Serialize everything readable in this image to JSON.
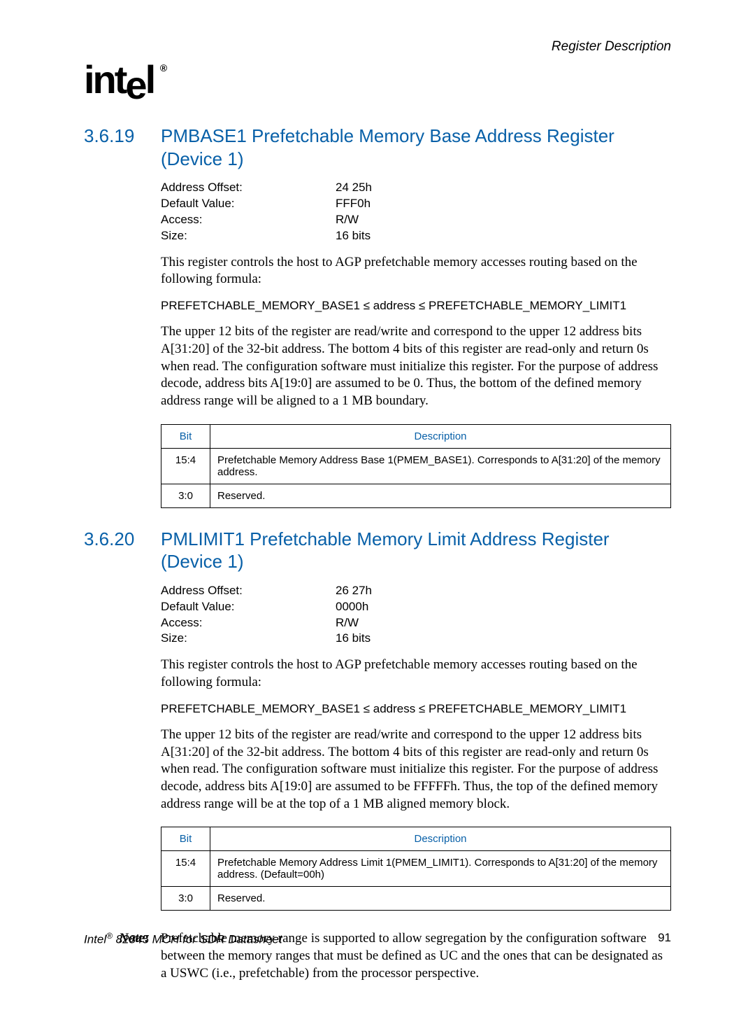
{
  "header": {
    "right": "Register Description",
    "logo": "intel"
  },
  "colors": {
    "accent": "#0860a8",
    "text": "#000000",
    "background": "#ffffff",
    "border": "#000000"
  },
  "sections": [
    {
      "num": "3.6.19",
      "title": "PMBASE1 Prefetchable Memory Base Address Register (Device 1)",
      "info": {
        "address_offset_label": "Address Offset:",
        "address_offset_value": "24 25h",
        "default_value_label": "Default Value:",
        "default_value_value": "FFF0h",
        "access_label": "Access:",
        "access_value": "R/W",
        "size_label": "Size:",
        "size_value": "16 bits"
      },
      "p1": "This register controls the host to AGP prefetchable memory accesses routing based on the following formula:",
      "formula": "PREFETCHABLE_MEMORY_BASE1 ≤ address ≤ PREFETCHABLE_MEMORY_LIMIT1",
      "p2": "The upper 12 bits of the register are read/write and correspond to the upper 12 address bits A[31:20] of the 32-bit address. The bottom 4 bits of this register are read-only and return 0s when read. The configuration software must initialize this register. For the purpose of address decode, address bits A[19:0] are assumed to be 0. Thus, the bottom of the defined memory address range will be aligned to a 1 MB boundary.",
      "table": {
        "headers": {
          "bit": "Bit",
          "desc": "Description"
        },
        "rows": [
          {
            "bit": "15:4",
            "desc": "Prefetchable Memory Address Base 1(PMEM_BASE1).      Corresponds to A[31:20] of the memory address."
          },
          {
            "bit": "3:0",
            "desc": "Reserved."
          }
        ]
      }
    },
    {
      "num": "3.6.20",
      "title": "PMLIMIT1 Prefetchable Memory Limit Address Register (Device 1)",
      "info": {
        "address_offset_label": "Address Offset:",
        "address_offset_value": "26 27h",
        "default_value_label": "Default Value:",
        "default_value_value": "0000h",
        "access_label": "Access:",
        "access_value": "R/W",
        "size_label": "Size:",
        "size_value": "16 bits"
      },
      "p1": "This register controls the host to AGP prefetchable memory accesses routing based on the following formula:",
      "formula": "PREFETCHABLE_MEMORY_BASE1 ≤ address ≤ PREFETCHABLE_MEMORY_LIMIT1",
      "p2": "The upper 12 bits of the register are read/write and correspond to the upper 12 address bits A[31:20] of the 32-bit address. The bottom 4 bits of this register are read-only and return 0s when read. The configuration software must initialize this register. For the purpose of address decode, address bits A[19:0] are assumed to be FFFFFh. Thus, the top of the defined memory address range will be at the top of a 1 MB aligned memory block.",
      "table": {
        "headers": {
          "bit": "Bit",
          "desc": "Description"
        },
        "rows": [
          {
            "bit": "15:4",
            "desc": "Prefetchable Memory Address Limit 1(PMEM_LIMIT1).      Corresponds to A[31:20] of the memory address. (Default=00h)"
          },
          {
            "bit": "3:0",
            "desc": "Reserved."
          }
        ]
      }
    }
  ],
  "note": {
    "label": "Note:",
    "text": "Prefetchable memory range is supported to allow segregation by the configuration software between the memory ranges that must be defined as UC and the ones that can be designated as a USWC (i.e., prefetchable) from the processor perspective."
  },
  "footer": {
    "left_prefix": "Intel",
    "left_suffix": " 82845 MCH for SDR Datasheet",
    "page": "91"
  }
}
